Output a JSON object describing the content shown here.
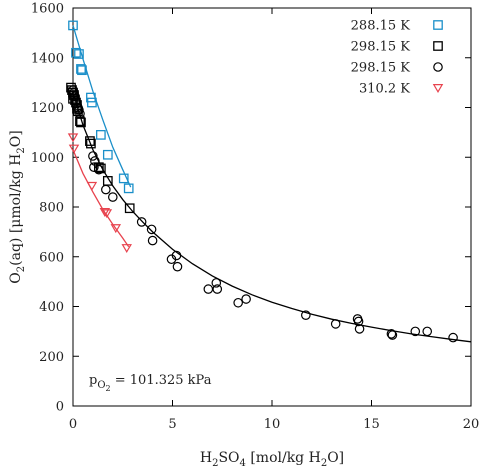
{
  "chart_data": {
    "type": "scatter",
    "title": "",
    "xlabel": {
      "main": "H",
      "sub1": "2",
      "mid": "SO",
      "sub2": "4",
      "tail": " [mol/kg H",
      "sub3": "2",
      "end": "O]"
    },
    "ylabel": {
      "main": "O",
      "sub1": "2",
      "mid": "(aq) [μmol/kg H",
      "sub2": "2",
      "end": "O]"
    },
    "xlim": [
      0,
      20
    ],
    "ylim": [
      0,
      1600
    ],
    "xticks": [
      0,
      5,
      10,
      15,
      20
    ],
    "yticks": [
      0,
      200,
      400,
      600,
      800,
      1000,
      1200,
      1400,
      1600
    ],
    "grid": false,
    "legend_position": "top-right",
    "annotation": {
      "p": "p",
      "sub": "O",
      "subsub": "2",
      "value": " = 101.325 kPa"
    },
    "series": [
      {
        "name": "288.15 K",
        "marker": "square",
        "color": "#1a8fc9",
        "points": [
          [
            0.0,
            1530
          ],
          [
            0.15,
            1420
          ],
          [
            0.3,
            1415
          ],
          [
            0.4,
            1355
          ],
          [
            0.45,
            1350
          ],
          [
            0.9,
            1240
          ],
          [
            0.95,
            1220
          ],
          [
            1.4,
            1090
          ],
          [
            1.75,
            1010
          ],
          [
            2.55,
            915
          ],
          [
            2.8,
            875
          ]
        ],
        "fit": [
          [
            0.0,
            1530
          ],
          [
            0.5,
            1395
          ],
          [
            1.0,
            1265
          ],
          [
            1.5,
            1150
          ],
          [
            2.0,
            1040
          ],
          [
            2.5,
            950
          ],
          [
            2.9,
            880
          ]
        ]
      },
      {
        "name": "298.15 K",
        "marker": "square",
        "color": "#000000",
        "points": [
          [
            -0.1,
            1280
          ],
          [
            -0.05,
            1270
          ],
          [
            0.0,
            1260
          ],
          [
            0.05,
            1250
          ],
          [
            0.0,
            1235
          ],
          [
            0.1,
            1230
          ],
          [
            0.15,
            1220
          ],
          [
            0.2,
            1210
          ],
          [
            0.2,
            1195
          ],
          [
            0.25,
            1185
          ],
          [
            0.35,
            1145
          ],
          [
            0.4,
            1140
          ],
          [
            0.85,
            1065
          ],
          [
            0.9,
            1055
          ],
          [
            1.3,
            960
          ],
          [
            1.4,
            955
          ],
          [
            1.75,
            905
          ],
          [
            2.85,
            795
          ]
        ],
        "fit": []
      },
      {
        "name": "298.15 K",
        "marker": "circle",
        "color": "#000000",
        "points": [
          [
            0.0,
            1270
          ],
          [
            0.05,
            1260
          ],
          [
            0.1,
            1245
          ],
          [
            0.15,
            1225
          ],
          [
            0.25,
            1200
          ],
          [
            0.3,
            1190
          ],
          [
            0.35,
            1175
          ],
          [
            1.0,
            1005
          ],
          [
            1.05,
            960
          ],
          [
            1.1,
            985
          ],
          [
            1.3,
            950
          ],
          [
            1.65,
            870
          ],
          [
            2.0,
            840
          ],
          [
            3.45,
            740
          ],
          [
            3.95,
            710
          ],
          [
            4.0,
            665
          ],
          [
            4.95,
            590
          ],
          [
            5.2,
            605
          ],
          [
            5.25,
            560
          ],
          [
            6.8,
            470
          ],
          [
            7.2,
            495
          ],
          [
            7.25,
            470
          ],
          [
            8.3,
            415
          ],
          [
            8.7,
            430
          ],
          [
            11.7,
            365
          ],
          [
            13.2,
            330
          ],
          [
            14.3,
            350
          ],
          [
            14.35,
            340
          ],
          [
            14.4,
            310
          ],
          [
            16.0,
            290
          ],
          [
            16.05,
            285
          ],
          [
            17.2,
            300
          ],
          [
            17.8,
            300
          ],
          [
            19.1,
            275
          ]
        ],
        "fit": [
          [
            0,
            1260
          ],
          [
            0.5,
            1130
          ],
          [
            1,
            1030
          ],
          [
            1.5,
            950
          ],
          [
            2,
            885
          ],
          [
            2.5,
            830
          ],
          [
            3,
            782
          ],
          [
            3.5,
            740
          ],
          [
            4,
            700
          ],
          [
            5,
            630
          ],
          [
            6,
            572
          ],
          [
            7,
            523
          ],
          [
            8,
            482
          ],
          [
            9,
            447
          ],
          [
            10,
            417
          ],
          [
            11,
            392
          ],
          [
            12,
            369
          ],
          [
            13,
            349
          ],
          [
            14,
            332
          ],
          [
            15,
            317
          ],
          [
            16,
            303
          ],
          [
            17,
            290
          ],
          [
            18,
            279
          ],
          [
            19,
            268
          ],
          [
            20,
            258
          ]
        ]
      },
      {
        "name": "310.2 K",
        "marker": "triangle-down",
        "color": "#e8434e",
        "points": [
          [
            0.0,
            1080
          ],
          [
            0.05,
            1035
          ],
          [
            0.95,
            885
          ],
          [
            1.6,
            780
          ],
          [
            1.7,
            775
          ],
          [
            2.15,
            715
          ],
          [
            2.7,
            635
          ]
        ],
        "fit": [
          [
            0,
            1030
          ],
          [
            0.5,
            935
          ],
          [
            1,
            860
          ],
          [
            1.5,
            790
          ],
          [
            2,
            730
          ],
          [
            2.5,
            675
          ],
          [
            2.8,
            640
          ]
        ]
      }
    ]
  }
}
